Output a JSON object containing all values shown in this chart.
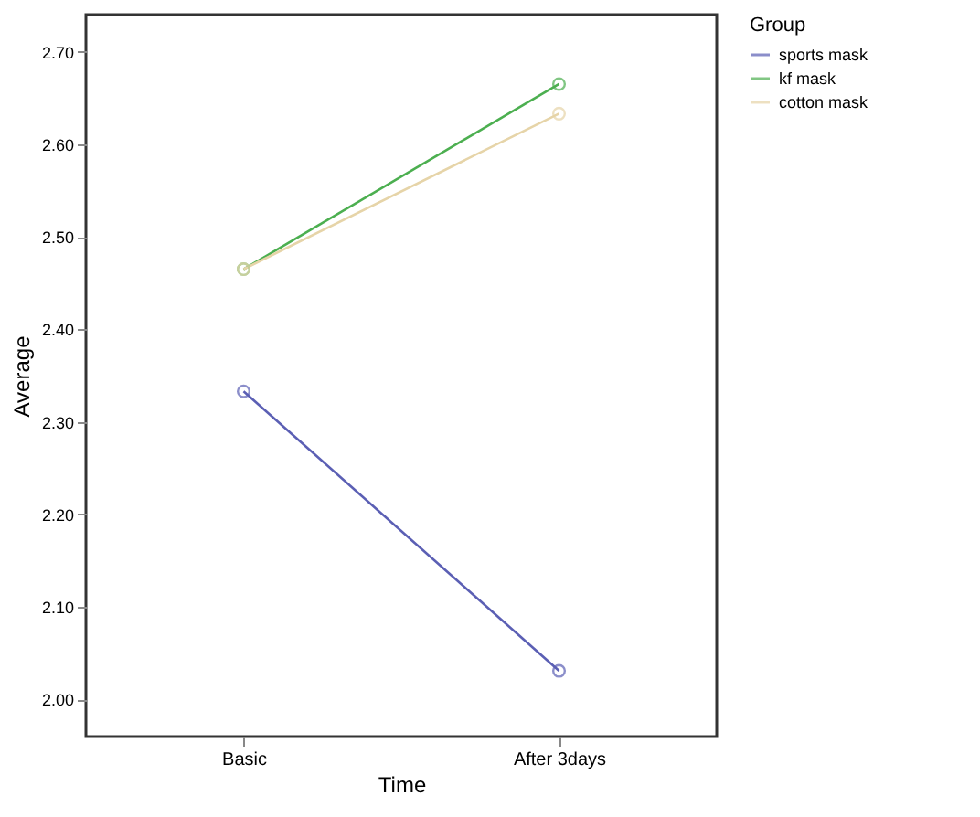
{
  "chart_data": {
    "type": "line",
    "xlabel": "Time",
    "ylabel": "Average",
    "legend_title": "Group",
    "categories": [
      "Basic",
      "After 3days"
    ],
    "series": [
      {
        "name": "sports mask",
        "color": "#5b5fb4",
        "values": [
          2.333,
          2.031
        ]
      },
      {
        "name": "kf mask",
        "color": "#4caf50",
        "values": [
          2.465,
          2.665
        ]
      },
      {
        "name": "cotton mask",
        "color": "#e6d4a8",
        "values": [
          2.465,
          2.633
        ]
      }
    ],
    "ylim": [
      1.96,
      2.74
    ],
    "yticks": [
      {
        "value": 2.0,
        "label": "2.00"
      },
      {
        "value": 2.1,
        "label": "2.10"
      },
      {
        "value": 2.2,
        "label": "2.20"
      },
      {
        "value": 2.3,
        "label": "2.30"
      },
      {
        "value": 2.4,
        "label": "2.40"
      },
      {
        "value": 2.5,
        "label": "2.50"
      },
      {
        "value": 2.6,
        "label": "2.60"
      },
      {
        "value": 2.7,
        "label": "2.70"
      }
    ],
    "grid": false,
    "legend": "top right",
    "marker": "circle",
    "line_style": "solid"
  }
}
